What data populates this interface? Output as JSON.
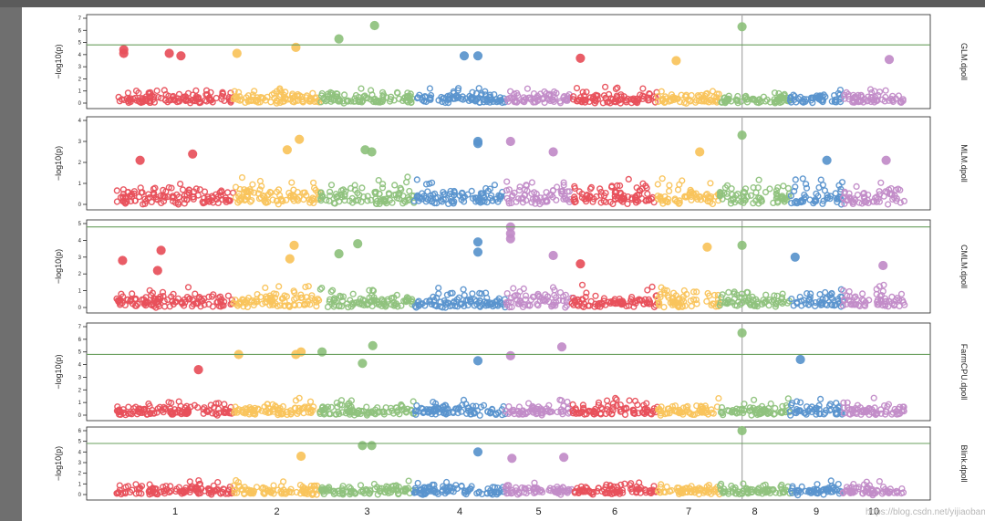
{
  "watermark": "https://blog.csdn.net/yijiaobani",
  "chart_data": {
    "type": "scatter",
    "subtype": "manhattan",
    "title": "",
    "xlabel": "",
    "chromosomes": [
      "1",
      "2",
      "3",
      "4",
      "5",
      "6",
      "7",
      "8",
      "9",
      "10"
    ],
    "chromosome_colors": [
      "#E8505B",
      "#F9C45C",
      "#8FC27D",
      "#5A94CD",
      "#C28CC8",
      "#E8505B",
      "#F9C45C",
      "#8FC27D",
      "#5A94CD",
      "#C28CC8"
    ],
    "threshold_line_color": "#6A9F5E",
    "signal_line_color": "#A8A8A8",
    "signal_line_chromosome": "8",
    "panels": [
      {
        "model": "GLM.dpoll",
        "ylabel": "−log10(p)",
        "ylim": [
          0,
          7
        ],
        "yticks": [
          "0",
          "1",
          "2",
          "3",
          "4",
          "5",
          "6",
          "7"
        ],
        "threshold": 4.8,
        "top_points": [
          {
            "chr": "1",
            "pos": 0.06,
            "value": 4.4
          },
          {
            "chr": "1",
            "pos": 0.06,
            "value": 4.1
          },
          {
            "chr": "1",
            "pos": 0.45,
            "value": 4.1
          },
          {
            "chr": "1",
            "pos": 0.55,
            "value": 3.9
          },
          {
            "chr": "2",
            "pos": 0.04,
            "value": 4.1
          },
          {
            "chr": "2",
            "pos": 0.72,
            "value": 4.6
          },
          {
            "chr": "3",
            "pos": 0.2,
            "value": 5.3
          },
          {
            "chr": "3",
            "pos": 0.58,
            "value": 6.4
          },
          {
            "chr": "4",
            "pos": 0.55,
            "value": 3.9
          },
          {
            "chr": "4",
            "pos": 0.7,
            "value": 3.9
          },
          {
            "chr": "6",
            "pos": 0.1,
            "value": 3.7
          },
          {
            "chr": "7",
            "pos": 0.3,
            "value": 3.5
          },
          {
            "chr": "8",
            "pos": 0.32,
            "value": 6.3
          },
          {
            "chr": "10",
            "pos": 0.75,
            "value": 3.6
          }
        ]
      },
      {
        "model": "MLM.dpoll",
        "ylabel": "−log10(p)",
        "ylim": [
          0,
          4
        ],
        "yticks": [
          "0",
          "1",
          "2",
          "3",
          "4"
        ],
        "threshold": null,
        "top_points": [
          {
            "chr": "1",
            "pos": 0.2,
            "value": 2.1
          },
          {
            "chr": "1",
            "pos": 0.65,
            "value": 2.4
          },
          {
            "chr": "2",
            "pos": 0.62,
            "value": 2.6
          },
          {
            "chr": "2",
            "pos": 0.76,
            "value": 3.1
          },
          {
            "chr": "3",
            "pos": 0.48,
            "value": 2.6
          },
          {
            "chr": "3",
            "pos": 0.55,
            "value": 2.5
          },
          {
            "chr": "4",
            "pos": 0.7,
            "value": 3.0
          },
          {
            "chr": "4",
            "pos": 0.7,
            "value": 2.9
          },
          {
            "chr": "5",
            "pos": 0.08,
            "value": 3.0
          },
          {
            "chr": "5",
            "pos": 0.72,
            "value": 2.5
          },
          {
            "chr": "7",
            "pos": 0.68,
            "value": 2.5
          },
          {
            "chr": "8",
            "pos": 0.32,
            "value": 3.3
          },
          {
            "chr": "9",
            "pos": 0.7,
            "value": 2.1
          },
          {
            "chr": "10",
            "pos": 0.7,
            "value": 2.1
          }
        ]
      },
      {
        "model": "CMLM.dpoll",
        "ylabel": "−log10(p)",
        "ylim": [
          0,
          5
        ],
        "yticks": [
          "0",
          "1",
          "2",
          "3",
          "4",
          "5"
        ],
        "threshold": 4.8,
        "top_points": [
          {
            "chr": "1",
            "pos": 0.05,
            "value": 2.8
          },
          {
            "chr": "1",
            "pos": 0.38,
            "value": 3.4
          },
          {
            "chr": "1",
            "pos": 0.35,
            "value": 2.2
          },
          {
            "chr": "2",
            "pos": 0.7,
            "value": 3.7
          },
          {
            "chr": "2",
            "pos": 0.65,
            "value": 2.9
          },
          {
            "chr": "3",
            "pos": 0.2,
            "value": 3.2
          },
          {
            "chr": "3",
            "pos": 0.4,
            "value": 3.8
          },
          {
            "chr": "4",
            "pos": 0.7,
            "value": 3.9
          },
          {
            "chr": "4",
            "pos": 0.7,
            "value": 3.3
          },
          {
            "chr": "5",
            "pos": 0.08,
            "value": 4.8
          },
          {
            "chr": "5",
            "pos": 0.08,
            "value": 4.4
          },
          {
            "chr": "5",
            "pos": 0.08,
            "value": 4.1
          },
          {
            "chr": "5",
            "pos": 0.72,
            "value": 3.1
          },
          {
            "chr": "6",
            "pos": 0.1,
            "value": 2.6
          },
          {
            "chr": "7",
            "pos": 0.8,
            "value": 3.6
          },
          {
            "chr": "8",
            "pos": 0.32,
            "value": 3.7
          },
          {
            "chr": "9",
            "pos": 0.1,
            "value": 3.0
          },
          {
            "chr": "10",
            "pos": 0.65,
            "value": 2.5
          }
        ]
      },
      {
        "model": "FarmCPU.dpoll",
        "ylabel": "−log10(p)",
        "ylim": [
          0,
          7
        ],
        "yticks": [
          "0",
          "1",
          "2",
          "3",
          "4",
          "5",
          "6",
          "7"
        ],
        "threshold": 4.8,
        "top_points": [
          {
            "chr": "1",
            "pos": 0.7,
            "value": 3.6
          },
          {
            "chr": "2",
            "pos": 0.06,
            "value": 4.8
          },
          {
            "chr": "2",
            "pos": 0.72,
            "value": 4.8
          },
          {
            "chr": "2",
            "pos": 0.78,
            "value": 5.0
          },
          {
            "chr": "3",
            "pos": 0.02,
            "value": 5.0
          },
          {
            "chr": "3",
            "pos": 0.45,
            "value": 4.1
          },
          {
            "chr": "3",
            "pos": 0.56,
            "value": 5.5
          },
          {
            "chr": "4",
            "pos": 0.7,
            "value": 4.3
          },
          {
            "chr": "5",
            "pos": 0.08,
            "value": 4.7
          },
          {
            "chr": "5",
            "pos": 0.85,
            "value": 5.4
          },
          {
            "chr": "8",
            "pos": 0.32,
            "value": 6.5
          },
          {
            "chr": "9",
            "pos": 0.2,
            "value": 4.4
          }
        ]
      },
      {
        "model": "Blink.dpoll",
        "ylabel": "−log10(p)",
        "ylim": [
          0,
          6
        ],
        "yticks": [
          "0",
          "1",
          "2",
          "3",
          "4",
          "5",
          "6"
        ],
        "threshold": 4.8,
        "top_points": [
          {
            "chr": "2",
            "pos": 0.78,
            "value": 3.6
          },
          {
            "chr": "3",
            "pos": 0.45,
            "value": 4.6
          },
          {
            "chr": "3",
            "pos": 0.55,
            "value": 4.6
          },
          {
            "chr": "4",
            "pos": 0.7,
            "value": 4.0
          },
          {
            "chr": "5",
            "pos": 0.1,
            "value": 3.4
          },
          {
            "chr": "5",
            "pos": 0.88,
            "value": 3.5
          },
          {
            "chr": "8",
            "pos": 0.32,
            "value": 6.0
          }
        ]
      }
    ]
  }
}
